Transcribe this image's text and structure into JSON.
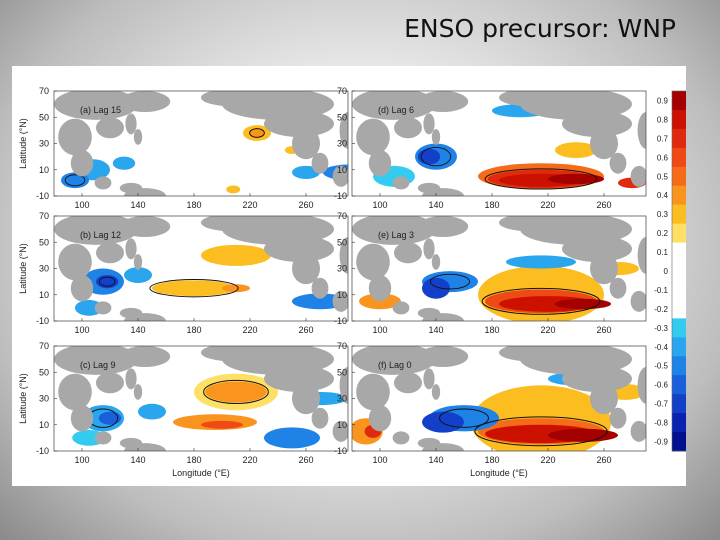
{
  "slide": {
    "title": "ENSO precursor: WNP"
  },
  "chart_data": {
    "type": "heatmap",
    "panels": [
      {
        "label": "(a) Lag 15"
      },
      {
        "label": "(d) Lag 6"
      },
      {
        "label": "(b) Lag 12"
      },
      {
        "label": "(e) Lag 3"
      },
      {
        "label": "(c) Lag 9"
      },
      {
        "label": "(f) Lag 0"
      }
    ],
    "x_ticks": [
      "100",
      "140",
      "180",
      "220",
      "260"
    ],
    "y_ticks": [
      "70",
      "50",
      "30",
      "10",
      "-10"
    ],
    "xlabel": "Longitude (°E)",
    "ylabel": "Latitude (°N)",
    "xlim": [
      80,
      290
    ],
    "ylim": [
      -10,
      70
    ],
    "colorbar": {
      "ticks": [
        "0.9",
        "0.8",
        "0.7",
        "0.6",
        "0.5",
        "0.4",
        "0.3",
        "0.2",
        "0.1",
        "0",
        "-0.1",
        "-0.2",
        "-0.3",
        "-0.4",
        "-0.5",
        "-0.6",
        "-0.7",
        "-0.8",
        "-0.9"
      ],
      "colors": [
        "#a50000",
        "#cc1100",
        "#e02a10",
        "#ef4a16",
        "#f56b1a",
        "#f9941e",
        "#fbbd1f",
        "#ffe066",
        "#ffffff",
        "#ffffff",
        "#ffffff",
        "#ffffff",
        "#33ccf0",
        "#2aa6ee",
        "#1f82e6",
        "#1a5fdb",
        "#1340c8",
        "#0a22b0",
        "#00108f"
      ]
    },
    "land_color": "#a8a8a8"
  }
}
